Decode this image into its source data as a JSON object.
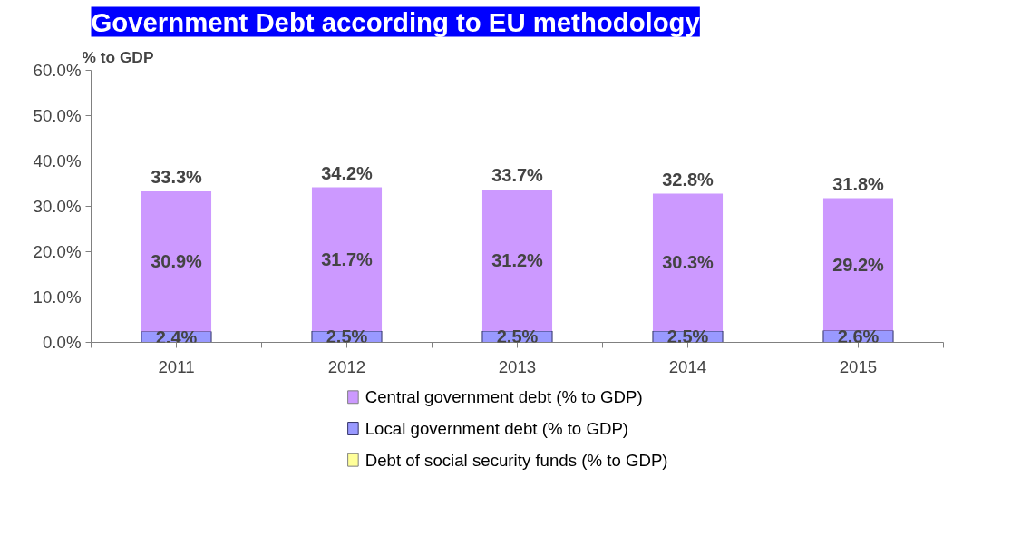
{
  "chart_data": {
    "type": "bar",
    "title": "Government Debt according to EU methodology",
    "ylabel": "% to GDP",
    "stacked": true,
    "categories": [
      "2011",
      "2012",
      "2013",
      "2014",
      "2015"
    ],
    "series": [
      {
        "name": "Local government debt (% to GDP)",
        "color": "#9999ff",
        "values": [
          2.4,
          2.5,
          2.5,
          2.5,
          2.6
        ],
        "value_labels": [
          "2.4%",
          "2.5%",
          "2.5%",
          "2.5%",
          "2.6%"
        ]
      },
      {
        "name": "Central government debt (% to GDP)",
        "color": "#cc99ff",
        "values": [
          30.9,
          31.7,
          31.2,
          30.3,
          29.2
        ],
        "value_labels": [
          "30.9%",
          "31.7%",
          "31.2%",
          "30.3%",
          "29.2%"
        ]
      },
      {
        "name": "Debt of social security funds (% to GDP)",
        "color": "#ffff99",
        "values": [
          0,
          0,
          0,
          0,
          0
        ]
      }
    ],
    "totals": [
      "33.3%",
      "34.2%",
      "33.7%",
      "32.8%",
      "31.8%"
    ],
    "ylim": [
      0,
      60
    ],
    "yticks": [
      {
        "value": 0,
        "label": "0.0%"
      },
      {
        "value": 10,
        "label": "10.0%"
      },
      {
        "value": 20,
        "label": "20.0%"
      },
      {
        "value": 30,
        "label": "30.0%"
      },
      {
        "value": 40,
        "label": "40.0%"
      },
      {
        "value": 50,
        "label": "50.0%"
      },
      {
        "value": 60,
        "label": "60.0%"
      }
    ],
    "grid": false,
    "legend": "bottom"
  }
}
